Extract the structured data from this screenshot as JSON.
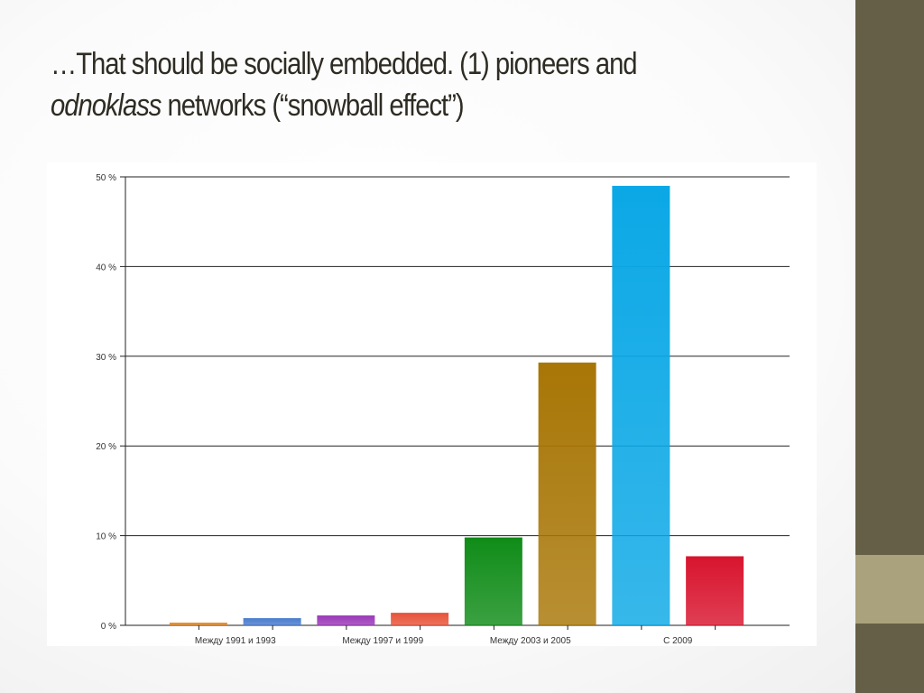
{
  "slide": {
    "title_prefix": "…That should be socially embedded. (1) pioneers and",
    "title_italic": "odnoklass",
    "title_suffix": " networks  (“snowball effect”)"
  },
  "chart_data": {
    "type": "bar",
    "categories": [
      "",
      "Между 1991 и 1993",
      "",
      "Между 1997 и 1999",
      "",
      "Между 2003 и 2005",
      "",
      "С 2009"
    ],
    "values": [
      0.3,
      0.8,
      1.1,
      1.4,
      9.8,
      29.3,
      49.0,
      7.7
    ],
    "colors": [
      "#e0892a",
      "#4a7ccc",
      "#9b39b8",
      "#e8533a",
      "#108c18",
      "#a87606",
      "#0ba8e6",
      "#d8142e"
    ],
    "ylim": [
      0,
      50
    ],
    "yticks": [
      0,
      10,
      20,
      30,
      40,
      50
    ],
    "ytick_labels": [
      "0 %",
      "10 %",
      "20 %",
      "30 %",
      "40 %",
      "50 %"
    ],
    "grid": true
  }
}
